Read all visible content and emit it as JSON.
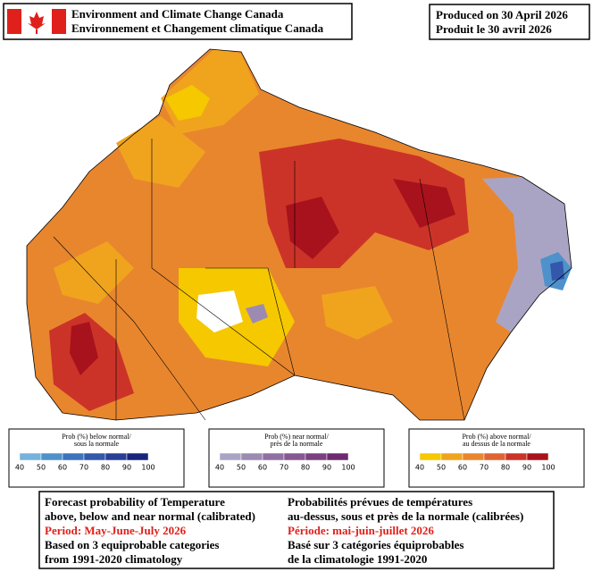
{
  "header": {
    "agency_en": "Environment and Climate Change Canada",
    "agency_fr": "Environnement et Changement climatique Canada",
    "produced_en": "Produced on 30 April 2026",
    "produced_fr": "Produit le 30 avril 2026"
  },
  "legends": [
    {
      "title_en": "Prob (%) below normal/",
      "title_fr": "sous la normale",
      "colors": [
        "#76b2dc",
        "#4f92cb",
        "#3d74bb",
        "#3358ab",
        "#283f98",
        "#17267a"
      ],
      "ticks": [
        40,
        50,
        60,
        70,
        80,
        90,
        100
      ]
    },
    {
      "title_en": "Prob (%) near normal/",
      "title_fr": "près de la normale",
      "colors": [
        "#aaa4c4",
        "#9d8ab2",
        "#9070a2",
        "#865892",
        "#7a4080",
        "#6d2a70"
      ],
      "ticks": [
        40,
        50,
        60,
        70,
        80,
        90,
        100
      ]
    },
    {
      "title_en": "Prob (%) above normal/",
      "title_fr": "au dessus de la normale",
      "colors": [
        "#f5c800",
        "#f0a41e",
        "#e8862e",
        "#e06432",
        "#cc3328",
        "#a8121c"
      ],
      "ticks": [
        40,
        50,
        60,
        70,
        80,
        90,
        100
      ]
    }
  ],
  "footer": {
    "en": [
      "Forecast probability of Temperature",
      "above, below and near normal (calibrated)",
      "Period: May-June-July 2026",
      "Based on 3 equiprobable categories",
      " from 1991-2020 climatology"
    ],
    "fr": [
      "Probabilités prévues de températures",
      "au-dessus, sous et près de la normale (calibrées)",
      "Période: mai-juin-juillet 2026",
      "Basé sur 3 catégories équiprobables",
      "de la climatologie 1991-2020"
    ]
  }
}
